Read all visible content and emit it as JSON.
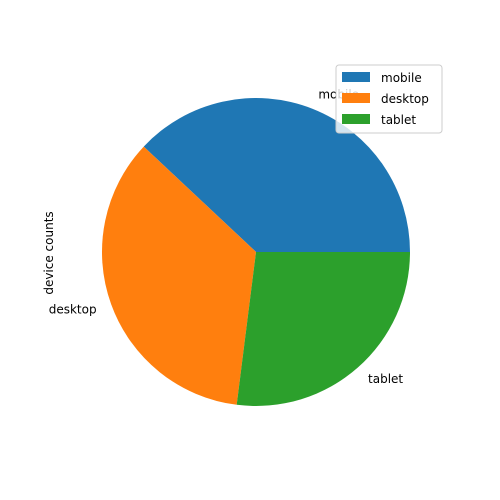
{
  "chart_data": {
    "type": "pie",
    "title": "",
    "ylabel": "device counts",
    "categories": [
      "mobile",
      "desktop",
      "tablet"
    ],
    "values": [
      38,
      35,
      27
    ],
    "colors": [
      "#1f77b4",
      "#ff7f0e",
      "#2ca02c"
    ],
    "legend": {
      "placement": "top-right",
      "entries": [
        "mobile",
        "desktop",
        "tablet"
      ]
    },
    "start_angle": 0,
    "direction": "counterclockwise"
  }
}
